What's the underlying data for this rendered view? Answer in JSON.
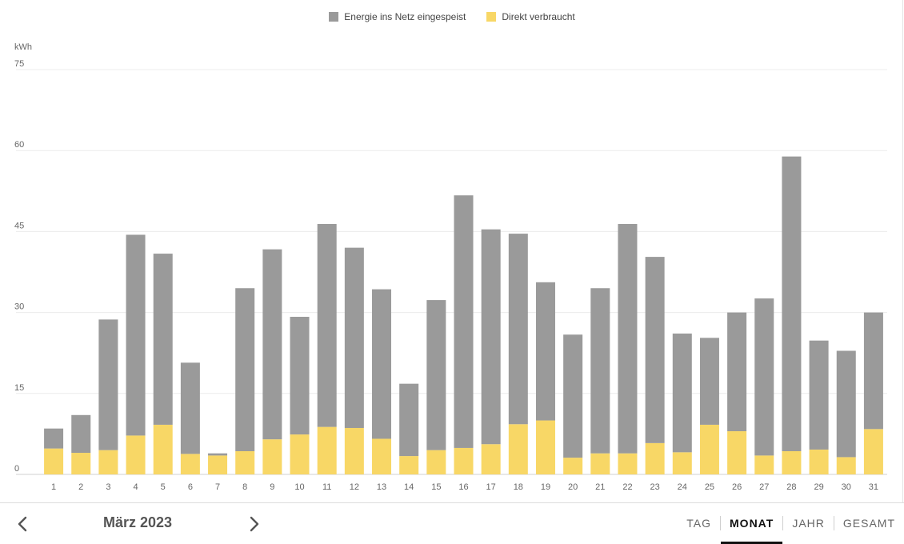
{
  "legend": [
    {
      "label": "Energie ins Netz eingespeist",
      "color": "#9a9a9a"
    },
    {
      "label": "Direkt verbraucht",
      "color": "#f8d766"
    }
  ],
  "chart_data": {
    "type": "bar",
    "stacked": true,
    "ylabel": "kWh",
    "ylim": [
      0,
      75
    ],
    "yticks": [
      0,
      15,
      30,
      45,
      60,
      75
    ],
    "grid": true,
    "legend_position": "top-center",
    "categories": [
      "1",
      "2",
      "3",
      "4",
      "5",
      "6",
      "7",
      "8",
      "9",
      "10",
      "11",
      "12",
      "13",
      "14",
      "15",
      "16",
      "17",
      "18",
      "19",
      "20",
      "21",
      "22",
      "23",
      "24",
      "25",
      "26",
      "27",
      "28",
      "29",
      "30",
      "31"
    ],
    "series": [
      {
        "name": "Direkt verbraucht",
        "color": "#f8d766",
        "values": [
          4.8,
          4.0,
          4.5,
          7.2,
          9.2,
          3.8,
          3.5,
          4.3,
          6.5,
          7.4,
          8.8,
          8.6,
          6.6,
          3.4,
          4.5,
          4.9,
          5.6,
          9.3,
          10.0,
          3.1,
          3.9,
          3.9,
          5.8,
          4.1,
          9.2,
          8.0,
          3.5,
          4.3,
          4.6,
          3.2,
          8.4
        ]
      },
      {
        "name": "Energie ins Netz eingespeist",
        "color": "#9a9a9a",
        "values": [
          3.7,
          7.0,
          24.2,
          37.2,
          31.7,
          16.9,
          0.4,
          30.2,
          35.2,
          21.8,
          37.6,
          33.4,
          27.7,
          13.4,
          27.8,
          46.8,
          39.8,
          35.3,
          25.6,
          22.8,
          30.6,
          42.5,
          34.5,
          22.0,
          16.1,
          22.0,
          29.1,
          54.6,
          20.2,
          19.7,
          21.6
        ]
      }
    ]
  },
  "footer": {
    "prev_icon": "chevron-left-icon",
    "next_icon": "chevron-right-icon",
    "period_label": "März 2023",
    "tabs": [
      {
        "label": "TAG",
        "active": false
      },
      {
        "label": "MONAT",
        "active": true
      },
      {
        "label": "JAHR",
        "active": false
      },
      {
        "label": "GESAMT",
        "active": false
      }
    ]
  }
}
